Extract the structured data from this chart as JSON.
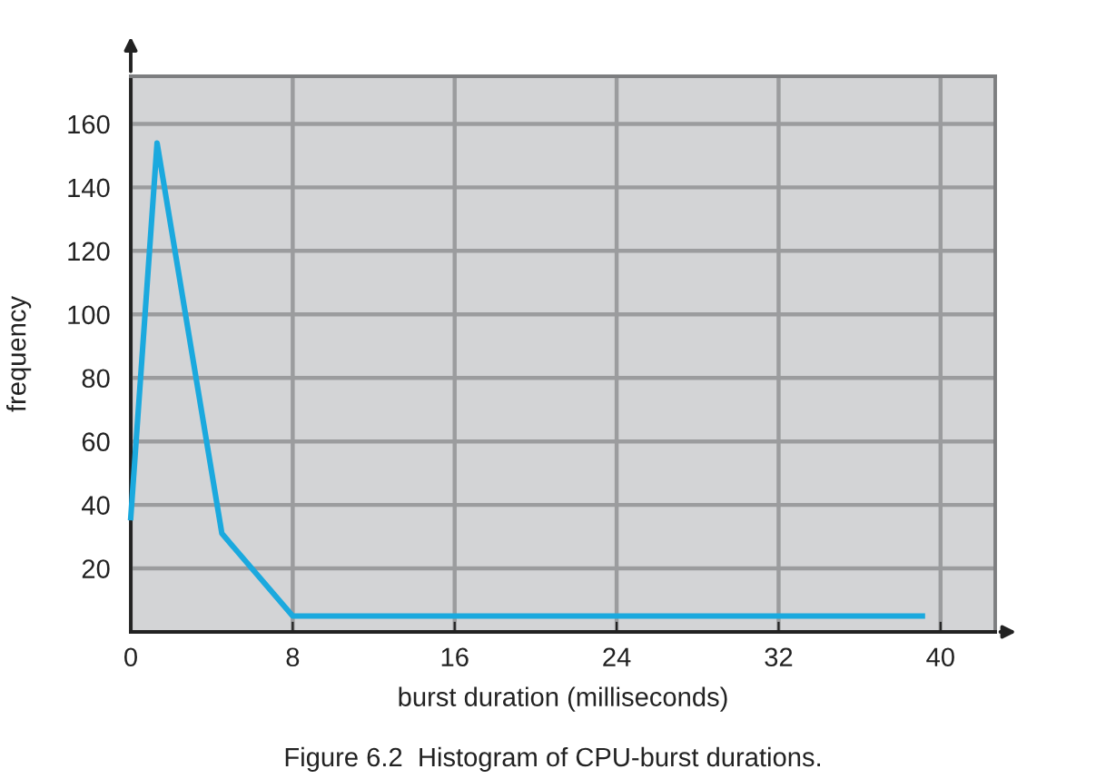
{
  "chart_data": {
    "type": "line",
    "title": "Figure 6.2  Histogram of CPU-burst durations.",
    "xlabel": "burst duration (milliseconds)",
    "ylabel": "frequency",
    "x": [
      0,
      1.3,
      4.5,
      8,
      39.1
    ],
    "series": [
      {
        "color": "#1ba9de",
        "values": [
          36,
          154,
          31,
          5,
          5
        ]
      }
    ],
    "xlim": [
      0,
      42.7
    ],
    "ylim": [
      0,
      175
    ],
    "xticks": [
      0,
      8,
      16,
      24,
      32,
      40
    ],
    "yticks": [
      20,
      40,
      60,
      80,
      100,
      120,
      140,
      160
    ],
    "grid": true,
    "marker": "none",
    "line_style": "solid"
  }
}
